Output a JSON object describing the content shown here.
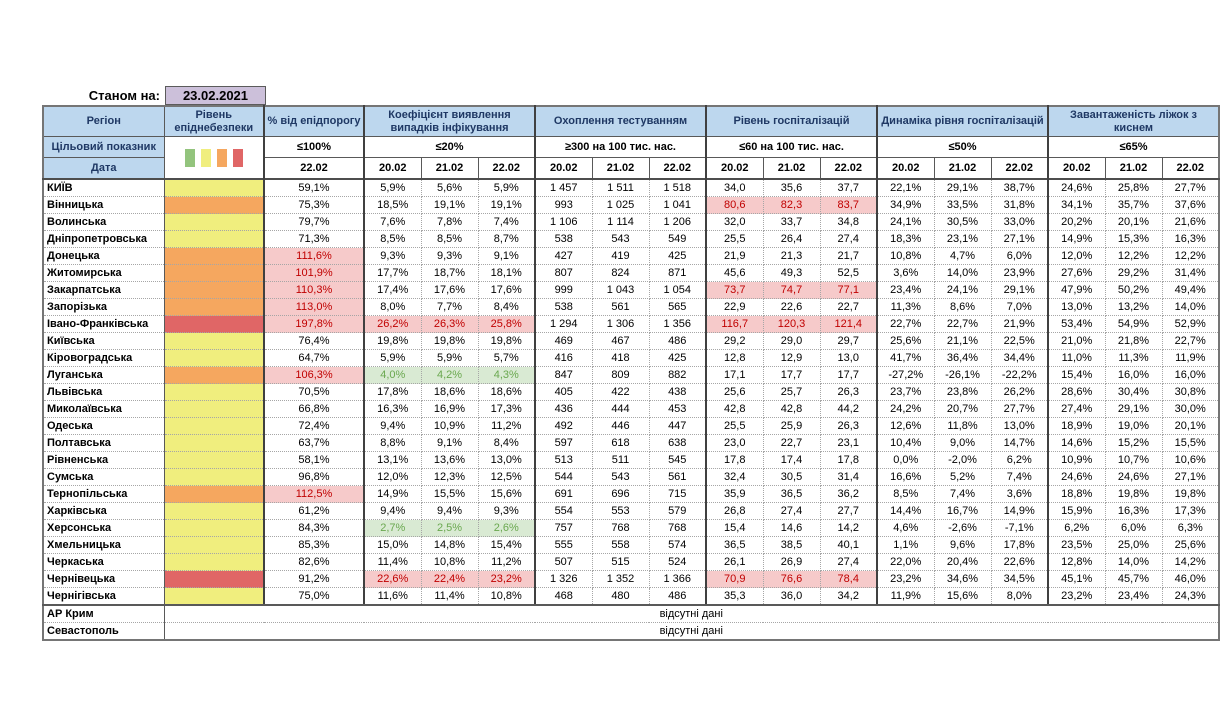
{
  "page": {
    "as_of_label": "Станом на:",
    "as_of_date": "23.02.2021"
  },
  "table": {
    "region_header": "Регіон",
    "target_label": "Цільовий показник",
    "date_label": "Дата",
    "no_data_text": "відсутні дані",
    "legend_colors": [
      "#93C47D",
      "#F0EE7E",
      "#F5A75F",
      "#E06666"
    ],
    "colors": {
      "header_bg": "#BDD7EE",
      "date_chip_bg": "#CCC0DA",
      "danger_yellow": "#F0EE7E",
      "danger_orange": "#F5A75F",
      "danger_red": "#E06666",
      "highlight_red_bg": "#F6CACA",
      "highlight_red_text": "#C00000",
      "highlight_green_bg": "#D9EAD3",
      "highlight_green_text": "#6AA84F"
    },
    "groups": [
      {
        "label": "Рівень епіднебезпеки",
        "target": "",
        "dates": []
      },
      {
        "label": "% від епідпорогу",
        "target": "≤100%",
        "dates": [
          "22.02"
        ]
      },
      {
        "label": "Коефіцієнт виявлення випадків інфікування",
        "target": "≤20%",
        "dates": [
          "20.02",
          "21.02",
          "22.02"
        ]
      },
      {
        "label": "Охоплення тестуванням",
        "target": "≥300 на 100 тис. нас.",
        "dates": [
          "20.02",
          "21.02",
          "22.02"
        ]
      },
      {
        "label": "Рівень госпіталізацій",
        "target": "≤60 на 100 тис. нас.",
        "dates": [
          "20.02",
          "21.02",
          "22.02"
        ]
      },
      {
        "label": "Динаміка рівня госпіталізацій",
        "target": "≤50%",
        "dates": [
          "20.02",
          "21.02",
          "22.02"
        ]
      },
      {
        "label": "Завантаженість ліжок з киснем",
        "target": "≤65%",
        "dates": [
          "20.02",
          "21.02",
          "22.02"
        ]
      }
    ],
    "rows": [
      {
        "region": "КИЇВ",
        "danger": "yellow",
        "epid": "59,1%",
        "epid_hl": false,
        "detect": [
          "5,9%",
          "5,6%",
          "5,9%"
        ],
        "detect_hl": "",
        "test": [
          "1 457",
          "1 511",
          "1 518"
        ],
        "hosp": [
          "34,0",
          "35,6",
          "37,7"
        ],
        "hosp_hl": false,
        "dyn": [
          "22,1%",
          "29,1%",
          "38,7%"
        ],
        "beds": [
          "24,6%",
          "25,8%",
          "27,7%"
        ]
      },
      {
        "region": "Вінницька",
        "danger": "orange",
        "epid": "75,3%",
        "epid_hl": false,
        "detect": [
          "18,5%",
          "19,1%",
          "19,1%"
        ],
        "detect_hl": "",
        "test": [
          "993",
          "1 025",
          "1 041"
        ],
        "hosp": [
          "80,6",
          "82,3",
          "83,7"
        ],
        "hosp_hl": true,
        "dyn": [
          "34,9%",
          "33,5%",
          "31,8%"
        ],
        "beds": [
          "34,1%",
          "35,7%",
          "37,6%"
        ]
      },
      {
        "region": "Волинська",
        "danger": "yellow",
        "epid": "79,7%",
        "epid_hl": false,
        "detect": [
          "7,6%",
          "7,8%",
          "7,4%"
        ],
        "detect_hl": "",
        "test": [
          "1 106",
          "1 114",
          "1 206"
        ],
        "hosp": [
          "32,0",
          "33,7",
          "34,8"
        ],
        "hosp_hl": false,
        "dyn": [
          "24,1%",
          "30,5%",
          "33,0%"
        ],
        "beds": [
          "20,2%",
          "20,1%",
          "21,6%"
        ]
      },
      {
        "region": "Дніпропетровська",
        "danger": "yellow",
        "epid": "71,3%",
        "epid_hl": false,
        "detect": [
          "8,5%",
          "8,5%",
          "8,7%"
        ],
        "detect_hl": "",
        "test": [
          "538",
          "543",
          "549"
        ],
        "hosp": [
          "25,5",
          "26,4",
          "27,4"
        ],
        "hosp_hl": false,
        "dyn": [
          "18,3%",
          "23,1%",
          "27,1%"
        ],
        "beds": [
          "14,9%",
          "15,3%",
          "16,3%"
        ]
      },
      {
        "region": "Донецька",
        "danger": "orange",
        "epid": "111,6%",
        "epid_hl": true,
        "detect": [
          "9,3%",
          "9,3%",
          "9,1%"
        ],
        "detect_hl": "",
        "test": [
          "427",
          "419",
          "425"
        ],
        "hosp": [
          "21,9",
          "21,3",
          "21,7"
        ],
        "hosp_hl": false,
        "dyn": [
          "10,8%",
          "4,7%",
          "6,0%"
        ],
        "beds": [
          "12,0%",
          "12,2%",
          "12,2%"
        ]
      },
      {
        "region": "Житомирська",
        "danger": "orange",
        "epid": "101,9%",
        "epid_hl": true,
        "detect": [
          "17,7%",
          "18,7%",
          "18,1%"
        ],
        "detect_hl": "",
        "test": [
          "807",
          "824",
          "871"
        ],
        "hosp": [
          "45,6",
          "49,3",
          "52,5"
        ],
        "hosp_hl": false,
        "dyn": [
          "3,6%",
          "14,0%",
          "23,9%"
        ],
        "beds": [
          "27,6%",
          "29,2%",
          "31,4%"
        ]
      },
      {
        "region": "Закарпатська",
        "danger": "orange",
        "epid": "110,3%",
        "epid_hl": true,
        "detect": [
          "17,4%",
          "17,6%",
          "17,6%"
        ],
        "detect_hl": "",
        "test": [
          "999",
          "1 043",
          "1 054"
        ],
        "hosp": [
          "73,7",
          "74,7",
          "77,1"
        ],
        "hosp_hl": true,
        "dyn": [
          "23,4%",
          "24,1%",
          "29,1%"
        ],
        "beds": [
          "47,9%",
          "50,2%",
          "49,4%"
        ]
      },
      {
        "region": "Запорізька",
        "danger": "orange",
        "epid": "113,0%",
        "epid_hl": true,
        "detect": [
          "8,0%",
          "7,7%",
          "8,4%"
        ],
        "detect_hl": "",
        "test": [
          "538",
          "561",
          "565"
        ],
        "hosp": [
          "22,9",
          "22,6",
          "22,7"
        ],
        "hosp_hl": false,
        "dyn": [
          "11,3%",
          "8,6%",
          "7,0%"
        ],
        "beds": [
          "13,0%",
          "13,2%",
          "14,0%"
        ]
      },
      {
        "region": "Івано-Франківська",
        "danger": "red",
        "epid": "197,8%",
        "epid_hl": true,
        "detect": [
          "26,2%",
          "26,3%",
          "25,8%"
        ],
        "detect_hl": "red",
        "test": [
          "1 294",
          "1 306",
          "1 356"
        ],
        "hosp": [
          "116,7",
          "120,3",
          "121,4"
        ],
        "hosp_hl": true,
        "dyn": [
          "22,7%",
          "22,7%",
          "21,9%"
        ],
        "beds": [
          "53,4%",
          "54,9%",
          "52,9%"
        ]
      },
      {
        "region": "Київська",
        "danger": "yellow",
        "epid": "76,4%",
        "epid_hl": false,
        "detect": [
          "19,8%",
          "19,8%",
          "19,8%"
        ],
        "detect_hl": "",
        "test": [
          "469",
          "467",
          "486"
        ],
        "hosp": [
          "29,2",
          "29,0",
          "29,7"
        ],
        "hosp_hl": false,
        "dyn": [
          "25,6%",
          "21,1%",
          "22,5%"
        ],
        "beds": [
          "21,0%",
          "21,8%",
          "22,7%"
        ]
      },
      {
        "region": "Кіровоградська",
        "danger": "yellow",
        "epid": "64,7%",
        "epid_hl": false,
        "detect": [
          "5,9%",
          "5,9%",
          "5,7%"
        ],
        "detect_hl": "",
        "test": [
          "416",
          "418",
          "425"
        ],
        "hosp": [
          "12,8",
          "12,9",
          "13,0"
        ],
        "hosp_hl": false,
        "dyn": [
          "41,7%",
          "36,4%",
          "34,4%"
        ],
        "beds": [
          "11,0%",
          "11,3%",
          "11,9%"
        ]
      },
      {
        "region": "Луганська",
        "danger": "orange",
        "epid": "106,3%",
        "epid_hl": true,
        "detect": [
          "4,0%",
          "4,2%",
          "4,3%"
        ],
        "detect_hl": "green",
        "test": [
          "847",
          "809",
          "882"
        ],
        "hosp": [
          "17,1",
          "17,7",
          "17,7"
        ],
        "hosp_hl": false,
        "dyn": [
          "-27,2%",
          "-26,1%",
          "-22,2%"
        ],
        "beds": [
          "15,4%",
          "16,0%",
          "16,0%"
        ]
      },
      {
        "region": "Львівська",
        "danger": "yellow",
        "epid": "70,5%",
        "epid_hl": false,
        "detect": [
          "17,8%",
          "18,6%",
          "18,6%"
        ],
        "detect_hl": "",
        "test": [
          "405",
          "422",
          "438"
        ],
        "hosp": [
          "25,6",
          "25,7",
          "26,3"
        ],
        "hosp_hl": false,
        "dyn": [
          "23,7%",
          "23,8%",
          "26,2%"
        ],
        "beds": [
          "28,6%",
          "30,4%",
          "30,8%"
        ]
      },
      {
        "region": "Миколаївська",
        "danger": "yellow",
        "epid": "66,8%",
        "epid_hl": false,
        "detect": [
          "16,3%",
          "16,9%",
          "17,3%"
        ],
        "detect_hl": "",
        "test": [
          "436",
          "444",
          "453"
        ],
        "hosp": [
          "42,8",
          "42,8",
          "44,2"
        ],
        "hosp_hl": false,
        "dyn": [
          "24,2%",
          "20,7%",
          "27,7%"
        ],
        "beds": [
          "27,4%",
          "29,1%",
          "30,0%"
        ]
      },
      {
        "region": "Одеська",
        "danger": "yellow",
        "epid": "72,4%",
        "epid_hl": false,
        "detect": [
          "9,4%",
          "10,9%",
          "11,2%"
        ],
        "detect_hl": "",
        "test": [
          "492",
          "446",
          "447"
        ],
        "hosp": [
          "25,5",
          "25,9",
          "26,3"
        ],
        "hosp_hl": false,
        "dyn": [
          "12,6%",
          "11,8%",
          "13,0%"
        ],
        "beds": [
          "18,9%",
          "19,0%",
          "20,1%"
        ]
      },
      {
        "region": "Полтавська",
        "danger": "yellow",
        "epid": "63,7%",
        "epid_hl": false,
        "detect": [
          "8,8%",
          "9,1%",
          "8,4%"
        ],
        "detect_hl": "",
        "test": [
          "597",
          "618",
          "638"
        ],
        "hosp": [
          "23,0",
          "22,7",
          "23,1"
        ],
        "hosp_hl": false,
        "dyn": [
          "10,4%",
          "9,0%",
          "14,7%"
        ],
        "beds": [
          "14,6%",
          "15,2%",
          "15,5%"
        ]
      },
      {
        "region": "Рівненська",
        "danger": "yellow",
        "epid": "58,1%",
        "epid_hl": false,
        "detect": [
          "13,1%",
          "13,6%",
          "13,0%"
        ],
        "detect_hl": "",
        "test": [
          "513",
          "511",
          "545"
        ],
        "hosp": [
          "17,8",
          "17,4",
          "17,8"
        ],
        "hosp_hl": false,
        "dyn": [
          "0,0%",
          "-2,0%",
          "6,2%"
        ],
        "beds": [
          "10,9%",
          "10,7%",
          "10,6%"
        ]
      },
      {
        "region": "Сумська",
        "danger": "yellow",
        "epid": "96,8%",
        "epid_hl": false,
        "detect": [
          "12,0%",
          "12,3%",
          "12,5%"
        ],
        "detect_hl": "",
        "test": [
          "544",
          "543",
          "561"
        ],
        "hosp": [
          "32,4",
          "30,5",
          "31,4"
        ],
        "hosp_hl": false,
        "dyn": [
          "16,6%",
          "5,2%",
          "7,4%"
        ],
        "beds": [
          "24,6%",
          "24,6%",
          "27,1%"
        ]
      },
      {
        "region": "Тернопільська",
        "danger": "orange",
        "epid": "112,5%",
        "epid_hl": true,
        "detect": [
          "14,9%",
          "15,5%",
          "15,6%"
        ],
        "detect_hl": "",
        "test": [
          "691",
          "696",
          "715"
        ],
        "hosp": [
          "35,9",
          "36,5",
          "36,2"
        ],
        "hosp_hl": false,
        "dyn": [
          "8,5%",
          "7,4%",
          "3,6%"
        ],
        "beds": [
          "18,8%",
          "19,8%",
          "19,8%"
        ]
      },
      {
        "region": "Харківська",
        "danger": "yellow",
        "epid": "61,2%",
        "epid_hl": false,
        "detect": [
          "9,4%",
          "9,4%",
          "9,3%"
        ],
        "detect_hl": "",
        "test": [
          "554",
          "553",
          "579"
        ],
        "hosp": [
          "26,8",
          "27,4",
          "27,7"
        ],
        "hosp_hl": false,
        "dyn": [
          "14,4%",
          "16,7%",
          "14,9%"
        ],
        "beds": [
          "15,9%",
          "16,3%",
          "17,3%"
        ]
      },
      {
        "region": "Херсонська",
        "danger": "yellow",
        "epid": "84,3%",
        "epid_hl": false,
        "detect": [
          "2,7%",
          "2,5%",
          "2,6%"
        ],
        "detect_hl": "green",
        "test": [
          "757",
          "768",
          "768"
        ],
        "hosp": [
          "15,4",
          "14,6",
          "14,2"
        ],
        "hosp_hl": false,
        "dyn": [
          "4,6%",
          "-2,6%",
          "-7,1%"
        ],
        "beds": [
          "6,2%",
          "6,0%",
          "6,3%"
        ]
      },
      {
        "region": "Хмельницька",
        "danger": "yellow",
        "epid": "85,3%",
        "epid_hl": false,
        "detect": [
          "15,0%",
          "14,8%",
          "15,4%"
        ],
        "detect_hl": "",
        "test": [
          "555",
          "558",
          "574"
        ],
        "hosp": [
          "36,5",
          "38,5",
          "40,1"
        ],
        "hosp_hl": false,
        "dyn": [
          "1,1%",
          "9,6%",
          "17,8%"
        ],
        "beds": [
          "23,5%",
          "25,0%",
          "25,6%"
        ]
      },
      {
        "region": "Черкаська",
        "danger": "yellow",
        "epid": "82,6%",
        "epid_hl": false,
        "detect": [
          "11,4%",
          "10,8%",
          "11,2%"
        ],
        "detect_hl": "",
        "test": [
          "507",
          "515",
          "524"
        ],
        "hosp": [
          "26,1",
          "26,9",
          "27,4"
        ],
        "hosp_hl": false,
        "dyn": [
          "22,0%",
          "20,4%",
          "22,6%"
        ],
        "beds": [
          "12,8%",
          "14,0%",
          "14,2%"
        ]
      },
      {
        "region": "Чернівецька",
        "danger": "red",
        "epid": "91,2%",
        "epid_hl": false,
        "detect": [
          "22,6%",
          "22,4%",
          "23,2%"
        ],
        "detect_hl": "red",
        "test": [
          "1 326",
          "1 352",
          "1 366"
        ],
        "hosp": [
          "70,9",
          "76,6",
          "78,4"
        ],
        "hosp_hl": true,
        "dyn": [
          "23,2%",
          "34,6%",
          "34,5%"
        ],
        "beds": [
          "45,1%",
          "45,7%",
          "46,0%"
        ]
      },
      {
        "region": "Чернігівська",
        "danger": "yellow",
        "epid": "75,0%",
        "epid_hl": false,
        "detect": [
          "11,6%",
          "11,4%",
          "10,8%"
        ],
        "detect_hl": "",
        "test": [
          "468",
          "480",
          "486"
        ],
        "hosp": [
          "35,3",
          "36,0",
          "34,2"
        ],
        "hosp_hl": false,
        "dyn": [
          "11,9%",
          "15,6%",
          "8,0%"
        ],
        "beds": [
          "23,2%",
          "23,4%",
          "24,3%"
        ]
      },
      {
        "region": "АР Крим",
        "nodata": true
      },
      {
        "region": "Севастополь",
        "nodata": true
      }
    ]
  }
}
